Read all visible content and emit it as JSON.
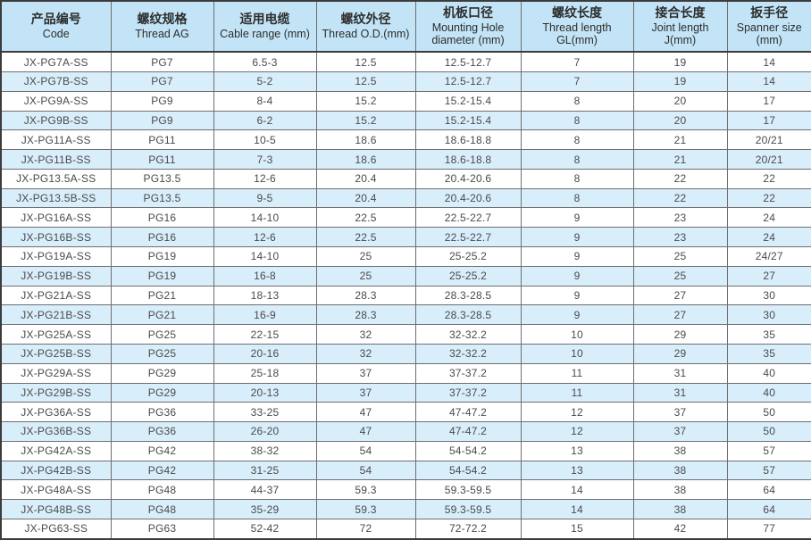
{
  "table": {
    "columns": [
      {
        "zh": "产品编号",
        "en": "Code"
      },
      {
        "zh": "螺纹规格",
        "en": "Thread AG"
      },
      {
        "zh": "适用电缆",
        "en": "Cable range (mm)"
      },
      {
        "zh": "螺纹外径",
        "en": "Thread O.D.(mm)"
      },
      {
        "zh": "机板口径",
        "en": "Mounting Hole diameter (mm)"
      },
      {
        "zh": "螺纹长度",
        "en": "Thread length GL(mm)"
      },
      {
        "zh": "接合长度",
        "en": "Joint length J(mm)"
      },
      {
        "zh": "扳手径",
        "en": "Spanner size (mm)"
      }
    ],
    "rows": [
      [
        "JX-PG7A-SS",
        "PG7",
        "6.5-3",
        "12.5",
        "12.5-12.7",
        "7",
        "19",
        "14"
      ],
      [
        "JX-PG7B-SS",
        "PG7",
        "5-2",
        "12.5",
        "12.5-12.7",
        "7",
        "19",
        "14"
      ],
      [
        "JX-PG9A-SS",
        "PG9",
        "8-4",
        "15.2",
        "15.2-15.4",
        "8",
        "20",
        "17"
      ],
      [
        "JX-PG9B-SS",
        "PG9",
        "6-2",
        "15.2",
        "15.2-15.4",
        "8",
        "20",
        "17"
      ],
      [
        "JX-PG11A-SS",
        "PG11",
        "10-5",
        "18.6",
        "18.6-18.8",
        "8",
        "21",
        "20/21"
      ],
      [
        "JX-PG11B-SS",
        "PG11",
        "7-3",
        "18.6",
        "18.6-18.8",
        "8",
        "21",
        "20/21"
      ],
      [
        "JX-PG13.5A-SS",
        "PG13.5",
        "12-6",
        "20.4",
        "20.4-20.6",
        "8",
        "22",
        "22"
      ],
      [
        "JX-PG13.5B-SS",
        "PG13.5",
        "9-5",
        "20.4",
        "20.4-20.6",
        "8",
        "22",
        "22"
      ],
      [
        "JX-PG16A-SS",
        "PG16",
        "14-10",
        "22.5",
        "22.5-22.7",
        "9",
        "23",
        "24"
      ],
      [
        "JX-PG16B-SS",
        "PG16",
        "12-6",
        "22.5",
        "22.5-22.7",
        "9",
        "23",
        "24"
      ],
      [
        "JX-PG19A-SS",
        "PG19",
        "14-10",
        "25",
        "25-25.2",
        "9",
        "25",
        "24/27"
      ],
      [
        "JX-PG19B-SS",
        "PG19",
        "16-8",
        "25",
        "25-25.2",
        "9",
        "25",
        "27"
      ],
      [
        "JX-PG21A-SS",
        "PG21",
        "18-13",
        "28.3",
        "28.3-28.5",
        "9",
        "27",
        "30"
      ],
      [
        "JX-PG21B-SS",
        "PG21",
        "16-9",
        "28.3",
        "28.3-28.5",
        "9",
        "27",
        "30"
      ],
      [
        "JX-PG25A-SS",
        "PG25",
        "22-15",
        "32",
        "32-32.2",
        "10",
        "29",
        "35"
      ],
      [
        "JX-PG25B-SS",
        "PG25",
        "20-16",
        "32",
        "32-32.2",
        "10",
        "29",
        "35"
      ],
      [
        "JX-PG29A-SS",
        "PG29",
        "25-18",
        "37",
        "37-37.2",
        "11",
        "31",
        "40"
      ],
      [
        "JX-PG29B-SS",
        "PG29",
        "20-13",
        "37",
        "37-37.2",
        "11",
        "31",
        "40"
      ],
      [
        "JX-PG36A-SS",
        "PG36",
        "33-25",
        "47",
        "47-47.2",
        "12",
        "37",
        "50"
      ],
      [
        "JX-PG36B-SS",
        "PG36",
        "26-20",
        "47",
        "47-47.2",
        "12",
        "37",
        "50"
      ],
      [
        "JX-PG42A-SS",
        "PG42",
        "38-32",
        "54",
        "54-54.2",
        "13",
        "38",
        "57"
      ],
      [
        "JX-PG42B-SS",
        "PG42",
        "31-25",
        "54",
        "54-54.2",
        "13",
        "38",
        "57"
      ],
      [
        "JX-PG48A-SS",
        "PG48",
        "44-37",
        "59.3",
        "59.3-59.5",
        "14",
        "38",
        "64"
      ],
      [
        "JX-PG48B-SS",
        "PG48",
        "35-29",
        "59.3",
        "59.3-59.5",
        "14",
        "38",
        "64"
      ],
      [
        "JX-PG63-SS",
        "PG63",
        "52-42",
        "72",
        "72-72.2",
        "15",
        "42",
        "77"
      ]
    ]
  },
  "colors": {
    "header_bg": "#c2e4f6",
    "row_alt_bg": "#d9eefb",
    "row_bg": "#ffffff",
    "border_inner": "#6f6f6f",
    "border_outer": "#3c3c3c",
    "text": "#4a4a4a"
  }
}
